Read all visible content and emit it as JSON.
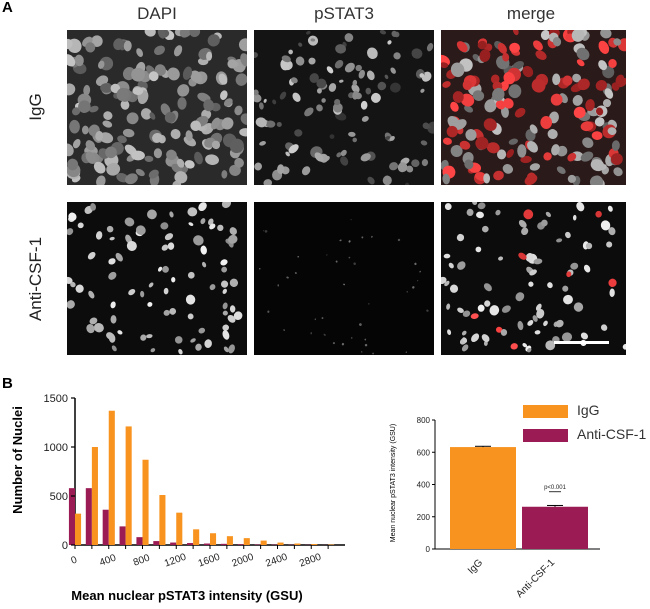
{
  "panel_a": {
    "letter": "A",
    "columns": [
      "DAPI",
      "pSTAT3",
      "merge"
    ],
    "rows": [
      "IgG",
      "Anti-CSF-1"
    ]
  },
  "panel_b": {
    "letter": "B"
  },
  "colors": {
    "igg": "#f7931e",
    "anti": "#9b1b54"
  },
  "chart_data": [
    {
      "type": "bar",
      "title": "",
      "xlabel": "Mean nuclear pSTAT3 intensity (GSU)",
      "ylabel": "Number of Nuclei",
      "ylim": [
        0,
        1500
      ],
      "yticks": [
        0,
        500,
        1000,
        1500
      ],
      "x": [
        0,
        200,
        400,
        600,
        800,
        1000,
        1200,
        1400,
        1600,
        1800,
        2000,
        2200,
        2400,
        2600,
        2800,
        3000
      ],
      "xtick_labels": [
        "0",
        "400",
        "800",
        "1200",
        "1600",
        "2000",
        "2400",
        "2800"
      ],
      "series": [
        {
          "name": "IgG",
          "values": [
            320,
            1000,
            1370,
            1210,
            870,
            510,
            330,
            160,
            120,
            90,
            70,
            45,
            25,
            15,
            10,
            5
          ]
        },
        {
          "name": "Anti-CSF-1",
          "values": [
            580,
            580,
            360,
            190,
            80,
            40,
            25,
            20,
            15,
            12,
            8,
            5,
            4,
            3,
            2,
            1
          ]
        }
      ],
      "legend": [
        "IgG",
        "Anti-CSF-1"
      ],
      "grid": false
    },
    {
      "type": "bar",
      "title": "",
      "xlabel": "",
      "ylabel": "Mean nuclear pSTAT3 intensity (GSU)",
      "ylim": [
        0,
        800
      ],
      "yticks": [
        0,
        200,
        400,
        600,
        800
      ],
      "categories": [
        "IgG",
        "Anti-CSF-1"
      ],
      "values": [
        632,
        262
      ],
      "errors": [
        5,
        8
      ],
      "annotation": "p<0.001",
      "grid": false
    }
  ]
}
